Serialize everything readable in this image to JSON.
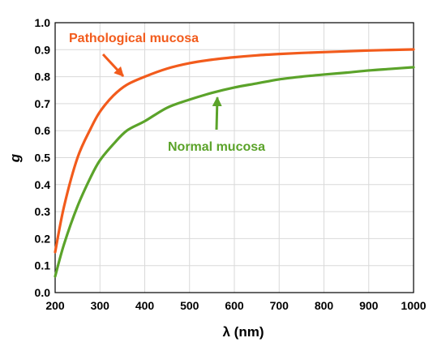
{
  "chart_data": {
    "type": "line",
    "xlabel": "λ (nm)",
    "ylabel": "g",
    "xlim": [
      200,
      1000
    ],
    "ylim": [
      0.0,
      1.0
    ],
    "xticks": [
      "200",
      "300",
      "400",
      "500",
      "600",
      "700",
      "800",
      "900",
      "1000"
    ],
    "yticks": [
      "0.0",
      "0.1",
      "0.2",
      "0.3",
      "0.4",
      "0.5",
      "0.6",
      "0.7",
      "0.8",
      "0.9",
      "1.0"
    ],
    "grid": true,
    "series": [
      {
        "name": "Pathological mucosa",
        "color": "#f25b1c",
        "x": [
          200,
          220,
          250,
          280,
          300,
          330,
          360,
          400,
          450,
          500,
          550,
          600,
          650,
          700,
          750,
          800,
          850,
          900,
          950,
          1000
        ],
        "y": [
          0.15,
          0.32,
          0.5,
          0.61,
          0.67,
          0.73,
          0.77,
          0.8,
          0.83,
          0.85,
          0.863,
          0.872,
          0.879,
          0.884,
          0.888,
          0.891,
          0.894,
          0.897,
          0.899,
          0.901
        ]
      },
      {
        "name": "Normal mucosa",
        "color": "#5ba32a",
        "x": [
          200,
          220,
          250,
          280,
          300,
          330,
          360,
          400,
          450,
          500,
          550,
          600,
          650,
          700,
          750,
          800,
          850,
          900,
          950,
          1000
        ],
        "y": [
          0.06,
          0.18,
          0.32,
          0.43,
          0.49,
          0.55,
          0.6,
          0.635,
          0.685,
          0.715,
          0.74,
          0.76,
          0.775,
          0.79,
          0.8,
          0.808,
          0.815,
          0.823,
          0.829,
          0.835
        ]
      }
    ],
    "annotations": [
      {
        "text": "Pathological mucosa",
        "color": "#f25b1c",
        "arrow_to": [
          352,
          0.79
        ]
      },
      {
        "text": "Normal mucosa",
        "color": "#5ba32a",
        "arrow_to": [
          562,
          0.735
        ]
      }
    ]
  }
}
